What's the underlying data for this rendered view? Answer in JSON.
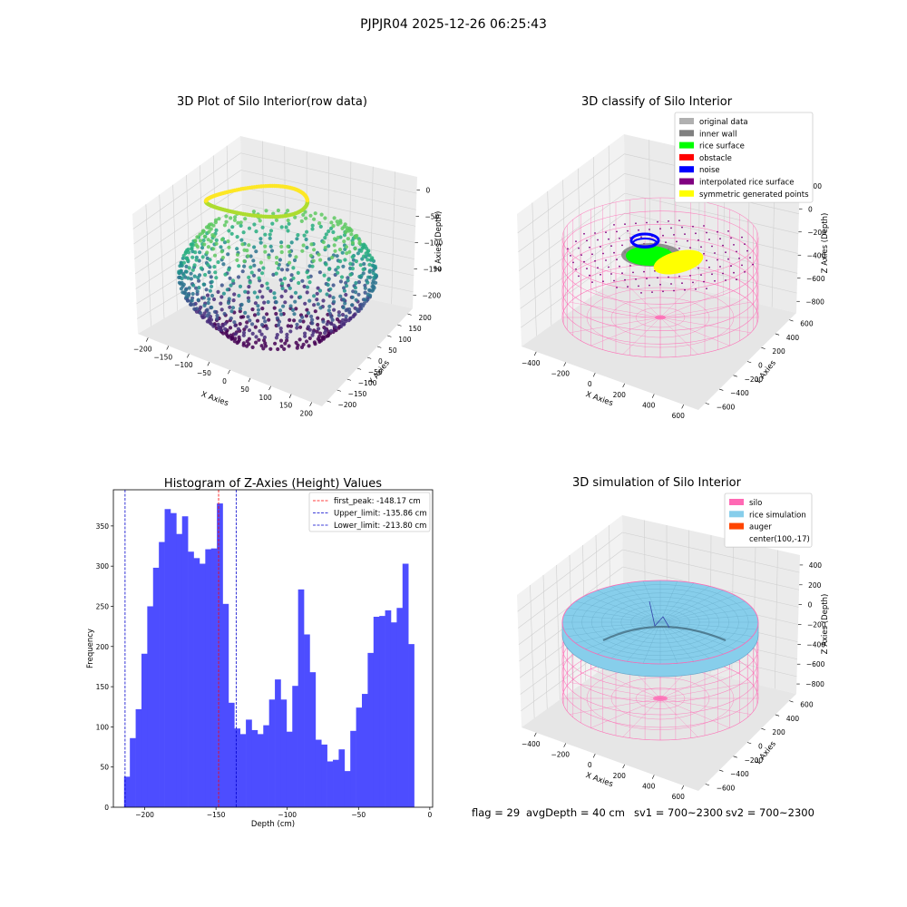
{
  "figure_title": "PJPJR04 2025-12-26 06:25:43",
  "footer": {
    "flag": "flag = 29",
    "avg_depth": "avgDepth = 40 cm",
    "sv1": "sv1 = 700~2300",
    "sv2": "sv2 = 700~2300"
  },
  "colors": {
    "hist_bar": "#4d4dff",
    "peak_line": "#ff0000",
    "limit_line": "#0000cc",
    "silo": "#ff69b4",
    "rice_sim": "#87ceeb",
    "auger": "#ff4500",
    "original": "#b0b0b0",
    "inner_wall": "#808080",
    "rice_surface": "#00ff00",
    "obstacle": "#ff0000",
    "noise": "#0000ff",
    "interp": "#800080",
    "symmetric": "#ffff00"
  },
  "chart_data": [
    {
      "type": "scatter",
      "projection": "3d",
      "title": "3D Plot of Silo Interior(row data)",
      "xlabel": "X Axies",
      "ylabel": "Y Axies",
      "zlabel": "Z Axies (Depth)",
      "xticks": [
        "−200",
        "−150",
        "−100",
        "−50",
        "0",
        "50",
        "100",
        "150",
        "200"
      ],
      "yticks": [
        "−200",
        "−150",
        "−100",
        "−50",
        "0",
        "50",
        "100",
        "150",
        "200"
      ],
      "zticks": [
        "0",
        "−50",
        "−100",
        "−150",
        "−200"
      ],
      "colormap": "viridis",
      "xlim": [
        -200,
        200
      ],
      "ylim": [
        -200,
        200
      ],
      "zlim": [
        -220,
        0
      ]
    },
    {
      "type": "scatter",
      "projection": "3d",
      "title": "3D classify of Silo Interior",
      "xlabel": "X Axies",
      "ylabel": "Y Axies",
      "zlabel": "Z Axies (Depth)",
      "xticks": [
        "−400",
        "−200",
        "0",
        "200",
        "400",
        "600"
      ],
      "yticks": [
        "−600",
        "−400",
        "−200",
        "0",
        "200",
        "400",
        "600"
      ],
      "zticks": [
        "200",
        "0",
        "−200",
        "−400",
        "−600",
        "−800"
      ],
      "legend": [
        {
          "label": "original data",
          "color_key": "original"
        },
        {
          "label": "inner wall",
          "color_key": "inner_wall"
        },
        {
          "label": "rice surface",
          "color_key": "rice_surface"
        },
        {
          "label": "obstacle",
          "color_key": "obstacle"
        },
        {
          "label": "noise",
          "color_key": "noise"
        },
        {
          "label": "interpolated rice surface",
          "color_key": "interp"
        },
        {
          "label": "symmetric generated points",
          "color_key": "symmetric"
        }
      ],
      "legend_loc": "top-right"
    },
    {
      "type": "bar",
      "title": "Histogram of Z-Axies (Height) Values",
      "xlabel": "Depth (cm)",
      "ylabel": "Frequency",
      "xlim": [
        -222,
        2
      ],
      "ylim": [
        0,
        395
      ],
      "xticks": [
        -200,
        -150,
        -100,
        -50,
        0
      ],
      "xtick_labels": [
        "−200",
        "−150",
        "−100",
        "−50",
        "0"
      ],
      "yticks": [
        0,
        50,
        100,
        150,
        200,
        250,
        300,
        350
      ],
      "bin_start": -214.5,
      "bin_width": 4.07,
      "values": [
        38,
        86,
        122,
        191,
        250,
        298,
        330,
        371,
        366,
        340,
        362,
        318,
        310,
        303,
        321,
        322,
        378,
        253,
        130,
        98,
        91,
        109,
        96,
        91,
        102,
        134,
        159,
        134,
        94,
        151,
        271,
        215,
        168,
        84,
        78,
        57,
        59,
        72,
        45,
        95,
        124,
        141,
        192,
        237,
        238,
        245,
        230,
        248,
        303,
        203
      ],
      "vlines": [
        {
          "label": "first_peak: -148.17 cm",
          "x": -148.17,
          "color_key": "peak_line"
        },
        {
          "label": "Upper_limit: -135.86 cm",
          "x": -135.86,
          "color_key": "limit_line"
        },
        {
          "label": "Lower_limit: -213.80 cm",
          "x": -213.8,
          "color_key": "limit_line"
        }
      ],
      "legend_loc": "top-right"
    },
    {
      "type": "surface",
      "projection": "3d",
      "title": "3D simulation of Silo Interior",
      "xlabel": "X Axies",
      "ylabel": "Y Axies",
      "zlabel": "Z Axies (Depth)",
      "xticks": [
        "−400",
        "−200",
        "0",
        "200",
        "400",
        "600"
      ],
      "yticks": [
        "−600",
        "−400",
        "−200",
        "0",
        "200",
        "400",
        "600"
      ],
      "zticks": [
        "400",
        "200",
        "0",
        "−200",
        "−400",
        "−600",
        "−800"
      ],
      "legend": [
        {
          "label": "silo",
          "color_key": "silo"
        },
        {
          "label": "rice simulation",
          "color_key": "rice_sim"
        },
        {
          "label": "auger",
          "color_key": "auger"
        },
        {
          "label": "center(100,-17)",
          "color_key": ""
        }
      ],
      "legend_loc": "top-right"
    }
  ]
}
